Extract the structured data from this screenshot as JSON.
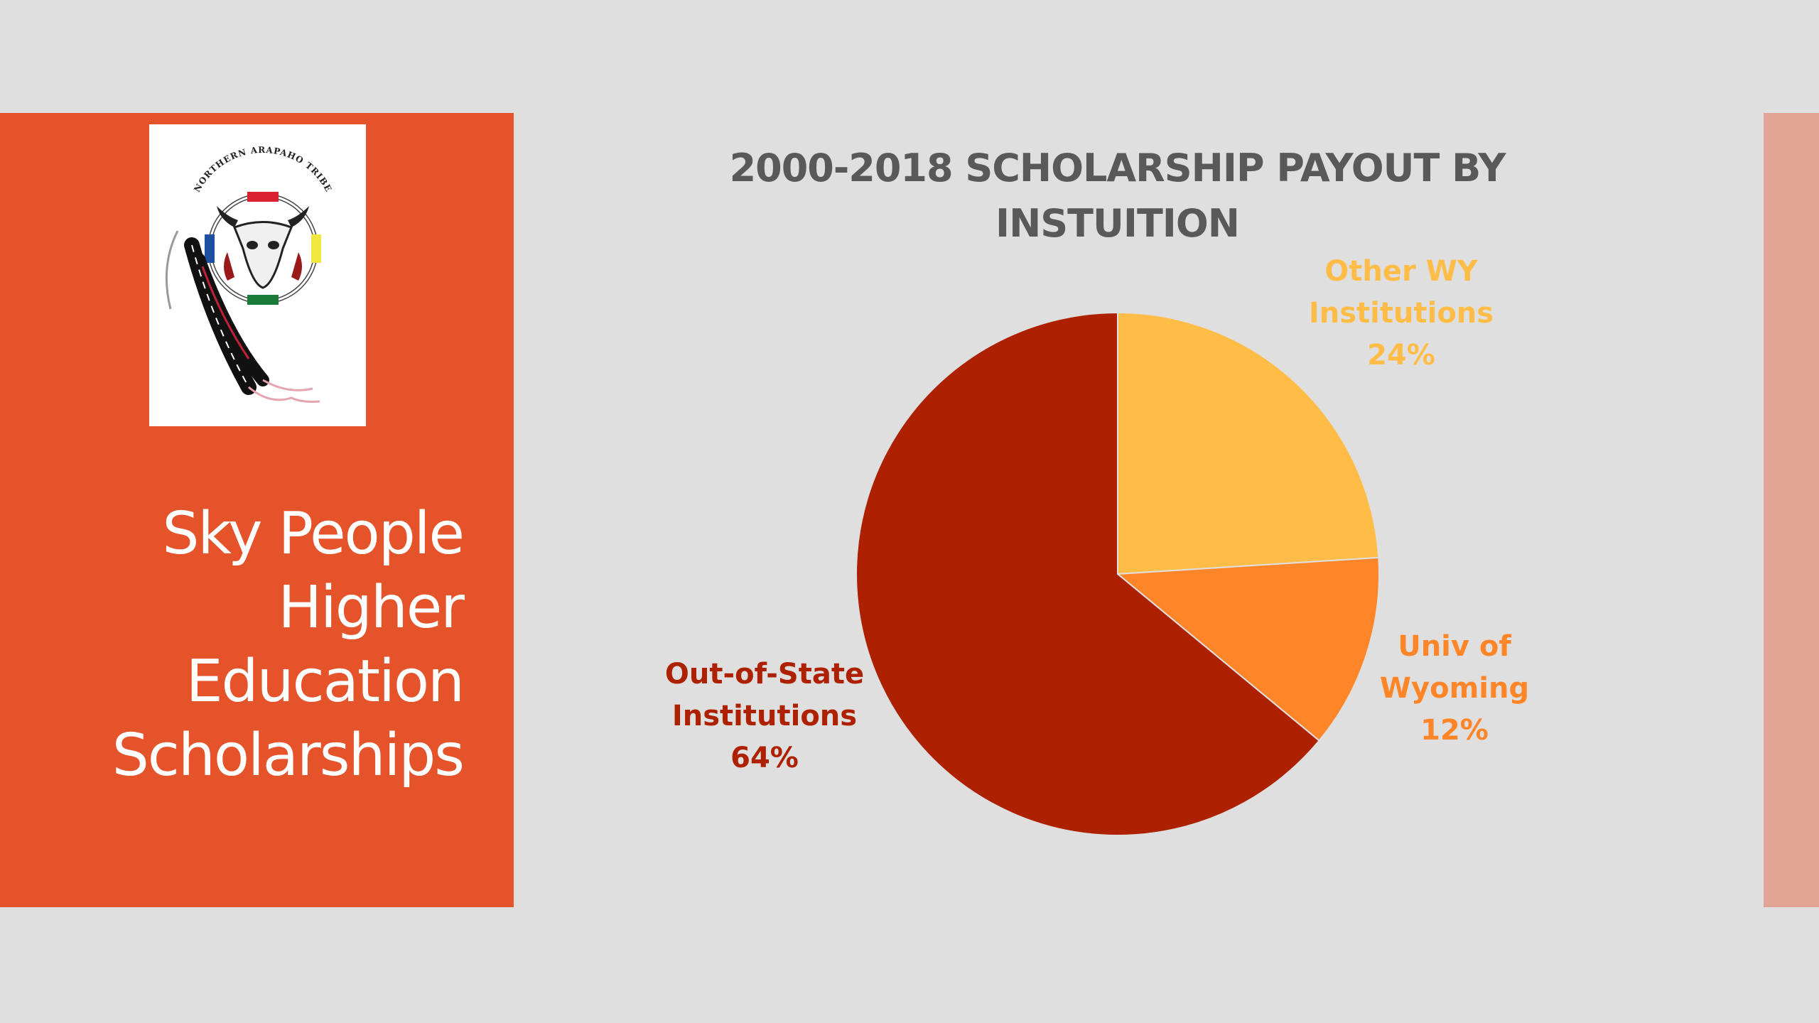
{
  "slide": {
    "title_lines": [
      "Sky People",
      "Higher",
      "Education",
      "Scholarships"
    ],
    "logo": {
      "alt": "Northern Arapaho Tribe logo",
      "text": "NORTHERN ARAPAHO TRIBE"
    }
  },
  "colors": {
    "background": "#dfdfdf",
    "left_panel": "#e5532b",
    "right_strip": "#e2a595",
    "title_text": "#595959"
  },
  "chart_data": {
    "type": "pie",
    "title": "2000-2018 SCHOLARSHIP PAYOUT BY INSTUITION",
    "title_lines": [
      "2000-2018 SCHOLARSHIP PAYOUT BY",
      "INSTUITION"
    ],
    "start_angle_deg": 0,
    "direction": "clockwise",
    "slices": [
      {
        "label_lines": [
          "Other WY",
          "Institutions"
        ],
        "percent_label": "24%",
        "value": 24,
        "color": "#ffbd47",
        "label_color": "#ffbd47"
      },
      {
        "label_lines": [
          "Univ of",
          "Wyoming"
        ],
        "percent_label": "12%",
        "value": 12,
        "color": "#ff8628",
        "label_color": "#ff8628"
      },
      {
        "label_lines": [
          "Out-of-State",
          "Institutions"
        ],
        "percent_label": "64%",
        "value": 64,
        "color": "#ae2100",
        "label_color": "#ae2100"
      }
    ]
  }
}
